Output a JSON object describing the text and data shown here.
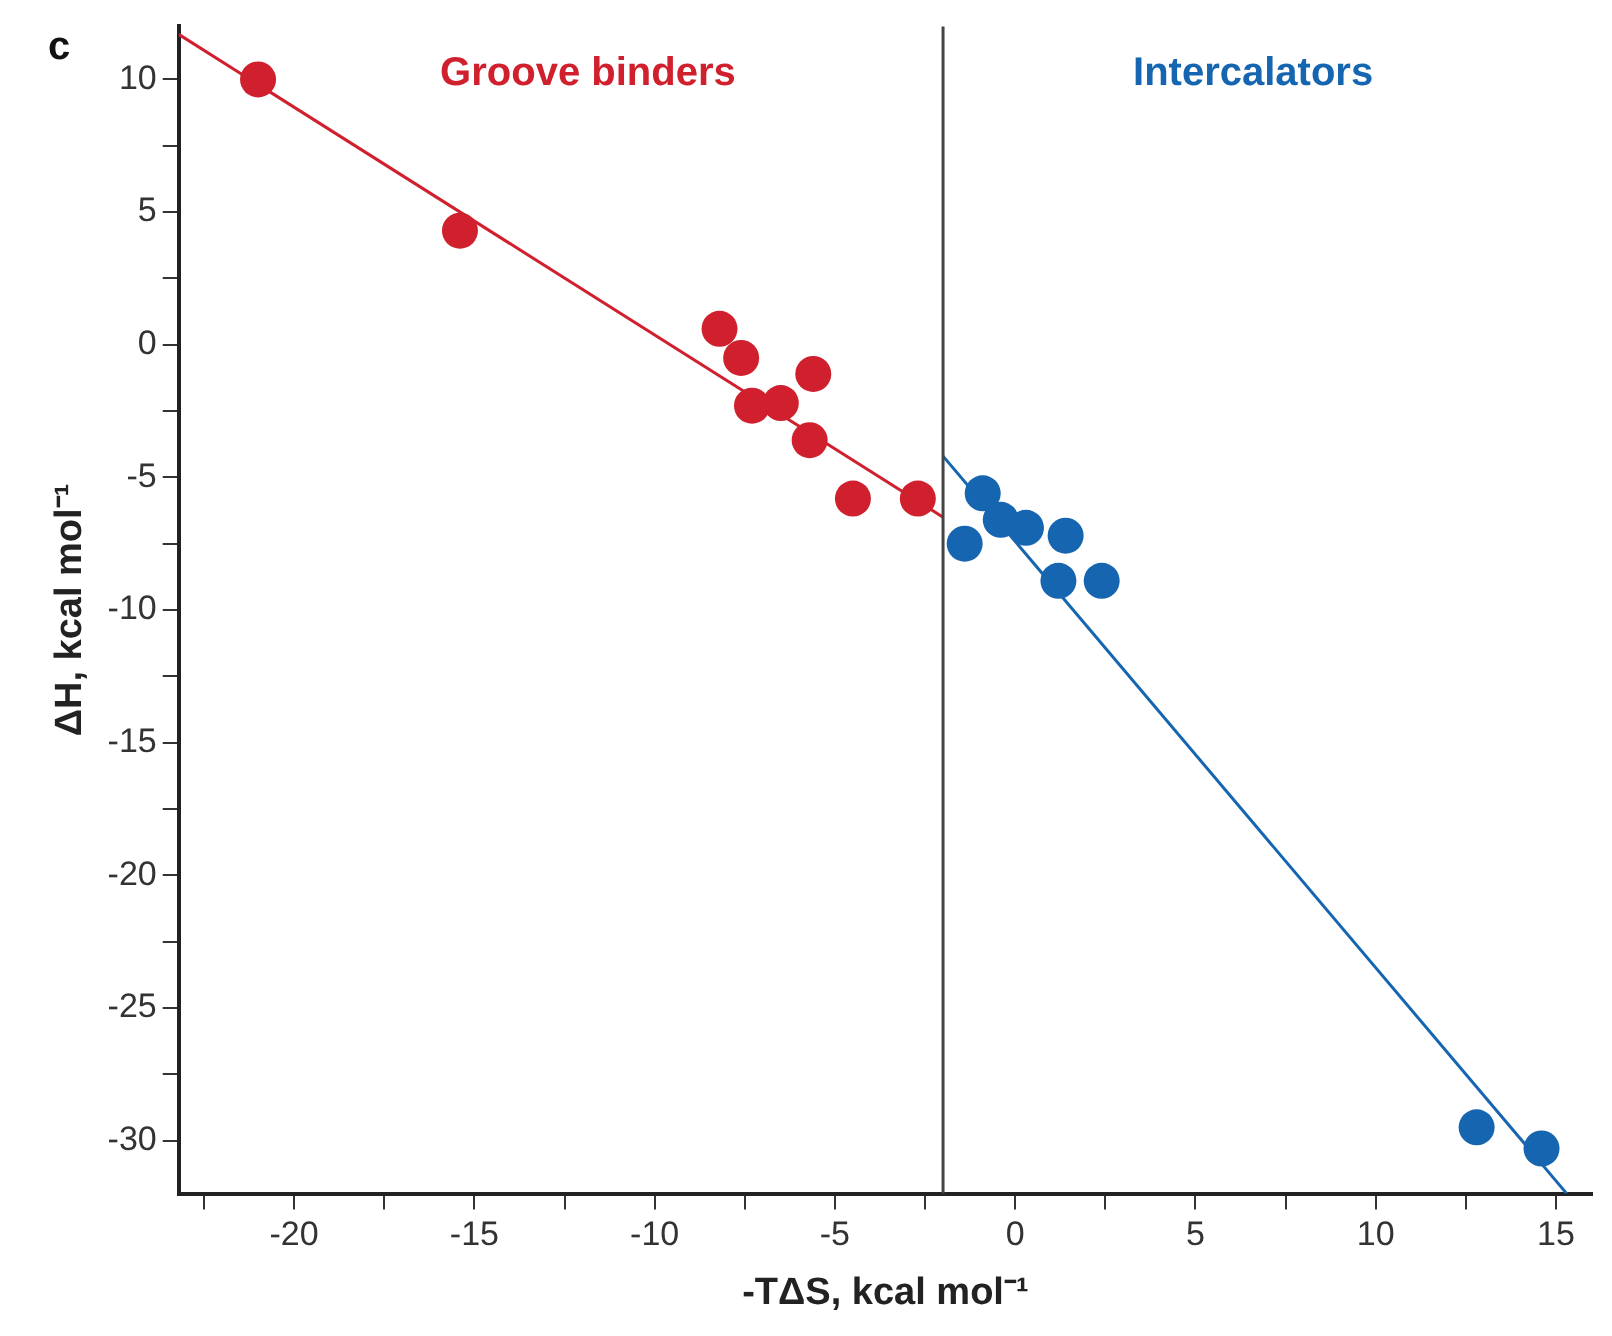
{
  "chart_data": {
    "type": "scatter",
    "xlabel": "-TΔS, kcal mol⁻¹",
    "ylabel": "ΔH, kcal mol⁻¹",
    "annotations": [
      "c"
    ],
    "xlim": [
      -23.2,
      16
    ],
    "ylim": [
      -32,
      12
    ],
    "xticks": [
      {
        "value": -22.5,
        "label": null
      },
      -20,
      {
        "value": -17.5,
        "label": null
      },
      -15,
      {
        "value": -12.5,
        "label": null
      },
      -10,
      {
        "value": -7.5,
        "label": null
      },
      -5,
      {
        "value": -2.5,
        "label": null
      },
      0,
      {
        "value": 2.5,
        "label": null
      },
      5,
      {
        "value": 7.5,
        "label": null
      },
      10,
      {
        "value": 12.5,
        "label": null
      },
      15
    ],
    "yticks": [
      -30,
      {
        "value": -27.5,
        "label": null
      },
      -25,
      {
        "value": -22.5,
        "label": null
      },
      -20,
      {
        "value": -17.5,
        "label": null
      },
      -15,
      {
        "value": -12.5,
        "label": null
      },
      -10,
      {
        "value": -7.5,
        "label": null
      },
      -5,
      {
        "value": -2.5,
        "label": null
      },
      0,
      {
        "value": 2.5,
        "label": null
      },
      5,
      {
        "value": 7.5,
        "label": null
      },
      10
    ],
    "grid": false,
    "legend": false,
    "marker": "circle",
    "ref_lines": [
      {
        "axis": "x",
        "value": -2,
        "color": "#444444"
      }
    ],
    "series": [
      {
        "name": "Groove binders",
        "color": "#d0202e",
        "x": [
          -21.0,
          -15.4,
          -8.2,
          -7.6,
          -7.3,
          -6.5,
          -5.6,
          -5.7,
          -4.5,
          -2.7
        ],
        "values": [
          10,
          4.3,
          0.6,
          -0.5,
          -2.3,
          -2.2,
          -1.1,
          -3.6,
          -5.8,
          -5.8
        ]
      },
      {
        "name": "Intercalators",
        "color": "#1565b0",
        "x": [
          -0.9,
          -1.4,
          -0.4,
          0.3,
          1.4,
          1.2,
          2.4,
          12.8,
          14.6
        ],
        "values": [
          -5.6,
          -7.5,
          -6.6,
          -6.9,
          -7.2,
          -8.9,
          -8.9,
          -29.5,
          -30.3
        ]
      },
      {
        "type": "line",
        "marker": "none",
        "color": "#d0202e",
        "x": [
          -23.2,
          -2
        ],
        "values": [
          11.7,
          -6.5
        ]
      },
      {
        "type": "line",
        "marker": "none",
        "color": "#1565b0",
        "x": [
          -2,
          15.3
        ],
        "values": [
          -4.2,
          -32
        ]
      }
    ]
  }
}
